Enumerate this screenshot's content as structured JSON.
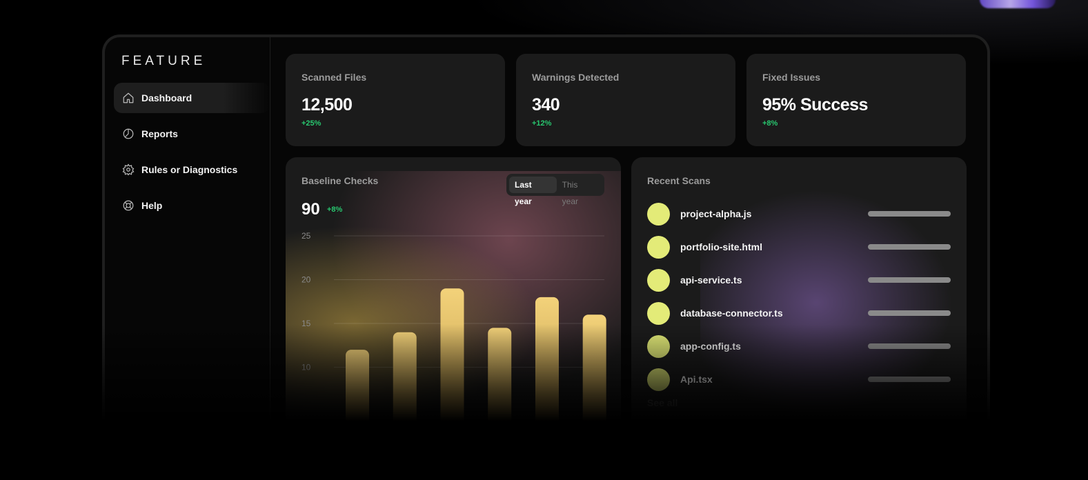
{
  "app": {
    "logo": "FEATURE"
  },
  "sidebar": {
    "items": [
      {
        "label": "Dashboard",
        "icon": "home-icon",
        "active": true
      },
      {
        "label": "Reports",
        "icon": "pie-chart-icon",
        "active": false
      },
      {
        "label": "Rules or Diagnostics",
        "icon": "gear-icon",
        "active": false
      },
      {
        "label": "Help",
        "icon": "lifebuoy-icon",
        "active": false
      }
    ]
  },
  "stats": [
    {
      "label": "Scanned Files",
      "value": "12,500",
      "delta": "+25%"
    },
    {
      "label": "Warnings Detected",
      "value": "340",
      "delta": "+12%"
    },
    {
      "label": "Fixed Issues",
      "value": "95% Success",
      "delta": "+8%"
    }
  ],
  "baseline": {
    "title": "Baseline Checks",
    "value": "90",
    "delta": "+8%",
    "toggle": {
      "options": [
        "Last year",
        "This year"
      ],
      "selected": "Last year"
    }
  },
  "chart_data": {
    "type": "bar",
    "values": [
      12,
      14,
      19,
      14.5,
      18,
      16
    ],
    "ylim": [
      0,
      25
    ],
    "yticks": [
      10,
      15,
      20,
      25
    ],
    "bar_color": "#f3d27a",
    "grid": true
  },
  "recent_scans": {
    "title": "Recent Scans",
    "items": [
      "project-alpha.js",
      "portfolio-site.html",
      "api-service.ts",
      "database-connector.ts",
      "app-config.ts",
      "Api.tsx"
    ],
    "see_all": "See all"
  },
  "colors": {
    "accent_green": "#28c76f",
    "scan_dot": "#e3eb78",
    "card_bg": "#1b1b1b"
  }
}
